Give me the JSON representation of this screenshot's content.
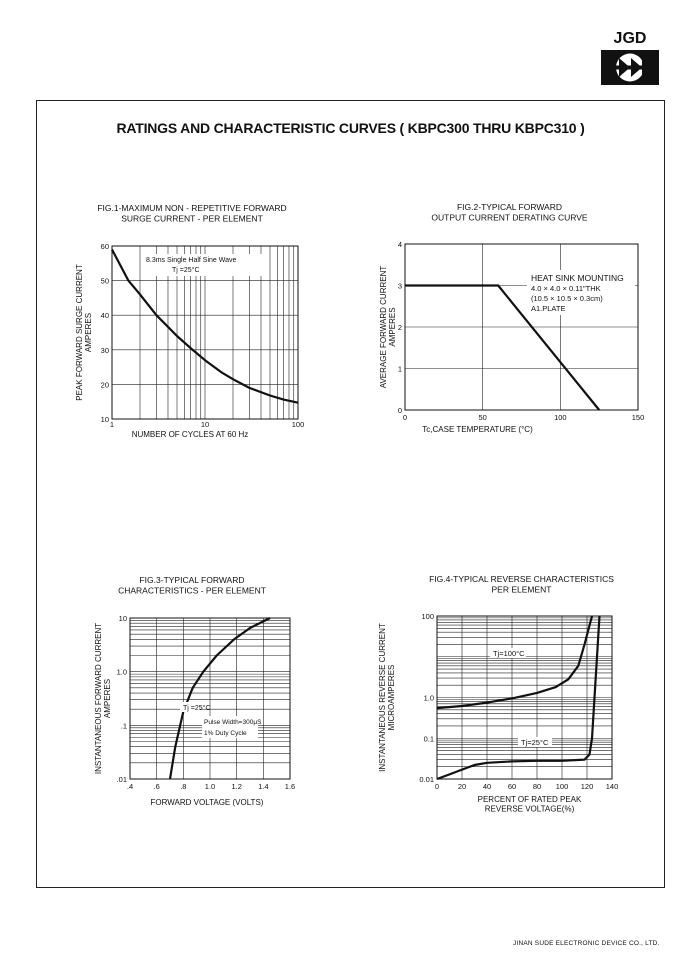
{
  "logo": {
    "text": "JGD"
  },
  "page_title": "RATINGS AND CHARACTERISTIC CURVES ( KBPC300 THRU KBPC310 )",
  "footer": "JINAN SUDE ELECTRONIC DEVICE CO., LTD.",
  "chart_data": [
    {
      "type": "line",
      "title": [
        "FIG.1-MAXIMUM NON - REPETITIVE FORWARD",
        "SURGE CURRENT - PER ELEMENT"
      ],
      "xlabel": "NUMBER OF CYCLES AT 60 Hz",
      "ylabel": [
        "PEAK FORWARD SURGE CURRENT",
        "AMPERES"
      ],
      "x_scale": "log",
      "xlim": [
        1,
        100
      ],
      "ylim": [
        10,
        60
      ],
      "x_ticks": [
        "1",
        "10",
        "100"
      ],
      "y_ticks": [
        "10",
        "20",
        "30",
        "40",
        "50",
        "60"
      ],
      "annotations": [
        "8.3ms Single Half Sine Wave",
        "Tj =25°C"
      ],
      "series": [
        {
          "x": [
            1,
            1.5,
            2,
            3,
            5,
            7,
            10,
            15,
            20,
            30,
            50,
            70,
            100
          ],
          "y": [
            59,
            50,
            46,
            40,
            34,
            30.5,
            27,
            23.5,
            21.5,
            19,
            16.8,
            15.6,
            14.7
          ]
        }
      ]
    },
    {
      "type": "line",
      "title": [
        "FIG.2-TYPICAL FORWARD",
        "OUTPUT CURRENT DERATING CURVE"
      ],
      "xlabel": "Tc,CASE  TEMPERATURE (°C)",
      "ylabel": [
        "AVERAGE FORWARD CURRENT",
        "AMPERES"
      ],
      "xlim": [
        0,
        150
      ],
      "ylim": [
        0,
        4
      ],
      "x_ticks": [
        "0",
        "50",
        "100",
        "150"
      ],
      "y_ticks": [
        "0",
        "1",
        "2",
        "3",
        "4"
      ],
      "annotations": [
        "HEAT SINK MOUNTING",
        "4.0 × 4.0 × 0.11\"THK",
        "(10.5 × 10.5 × 0.3cm)",
        "A1.PLATE"
      ],
      "series": [
        {
          "x": [
            0,
            60,
            125
          ],
          "y": [
            3,
            3,
            0
          ]
        }
      ]
    },
    {
      "type": "line",
      "title": [
        "FIG.3-TYPICAL FORWARD",
        "CHARACTERISTICS - PER ELEMENT"
      ],
      "xlabel": "FORWARD VOLTAGE (VOLTS)",
      "ylabel": [
        "INSTANTANEOUS FORWARD CURRENT",
        "AMPERES"
      ],
      "y_scale": "log",
      "xlim": [
        0.4,
        1.6
      ],
      "ylim": [
        0.01,
        10
      ],
      "x_ticks": [
        ".4",
        ".6",
        ".8",
        "1.0",
        "1.2",
        "1.4",
        "1.6"
      ],
      "y_ticks": [
        ".01",
        ".1",
        "1.0",
        "10"
      ],
      "annotations": [
        "Tj =25°C",
        "Pulse Width=300μS",
        "1% Duty Cycle"
      ],
      "series": [
        {
          "x": [
            0.7,
            0.74,
            0.8,
            0.87,
            0.95,
            1.05,
            1.18,
            1.3,
            1.45
          ],
          "y": [
            0.01,
            0.04,
            0.18,
            0.5,
            1.0,
            2.0,
            4.0,
            6.5,
            10
          ]
        }
      ]
    },
    {
      "type": "line",
      "title": [
        "FIG.4-TYPICAL REVERSE CHARACTERISTICS",
        "PER ELEMENT"
      ],
      "xlabel": [
        "PERCENT OF RATED PEAK",
        "REVERSE VOLTAGE(%)"
      ],
      "ylabel": [
        "INSTANTANEOUS REVERSE CURRENT",
        "MICROAMPERES"
      ],
      "y_scale": "log",
      "xlim": [
        0,
        140
      ],
      "ylim": [
        0.01,
        100
      ],
      "x_ticks": [
        "0",
        "20",
        "40",
        "60",
        "80",
        "100",
        "120",
        "140"
      ],
      "y_ticks": [
        "0.01",
        "0.1",
        "1.0",
        "100"
      ],
      "series": [
        {
          "name": "Tj=100°C",
          "x": [
            0,
            20,
            40,
            60,
            80,
            95,
            105,
            113,
            118,
            124
          ],
          "y": [
            0.55,
            0.62,
            0.75,
            0.95,
            1.3,
            1.8,
            2.8,
            6,
            20,
            100
          ]
        },
        {
          "name": "Tj=25°C",
          "x": [
            0,
            10,
            20,
            30,
            40,
            60,
            80,
            100,
            118,
            122,
            124,
            126,
            128,
            130
          ],
          "y": [
            0.01,
            0.013,
            0.017,
            0.022,
            0.025,
            0.027,
            0.028,
            0.028,
            0.03,
            0.04,
            0.1,
            1,
            10,
            100
          ]
        }
      ]
    }
  ]
}
